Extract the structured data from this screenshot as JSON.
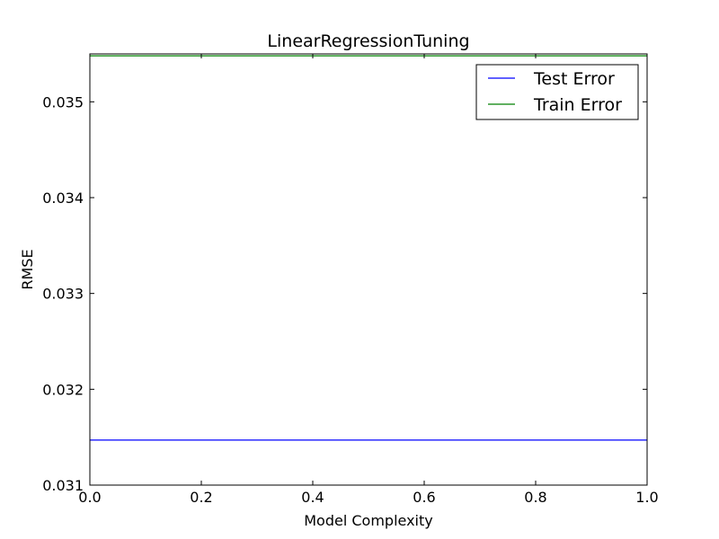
{
  "chart_data": {
    "type": "line",
    "title": "LinearRegressionTuning",
    "xlabel": "Model Complexity",
    "ylabel": "RMSE",
    "xlim": [
      0.0,
      1.0
    ],
    "ylim": [
      0.031,
      0.0355
    ],
    "x_ticks": [
      "0.0",
      "0.2",
      "0.4",
      "0.6",
      "0.8",
      "1.0"
    ],
    "y_ticks": [
      "0.031",
      "0.032",
      "0.033",
      "0.034",
      "0.035"
    ],
    "x_tick_values": [
      0.0,
      0.2,
      0.4,
      0.6,
      0.8,
      1.0
    ],
    "y_tick_values": [
      0.031,
      0.032,
      0.033,
      0.034,
      0.035
    ],
    "grid": false,
    "legend_position": "top-right",
    "series": [
      {
        "name": "Test Error",
        "color": "#0000ff",
        "x": [
          0.0,
          1.0
        ],
        "y": [
          0.03147,
          0.03147
        ]
      },
      {
        "name": "Train Error",
        "color": "#008000",
        "x": [
          0.0,
          1.0
        ],
        "y": [
          0.03548,
          0.03548
        ]
      }
    ]
  }
}
